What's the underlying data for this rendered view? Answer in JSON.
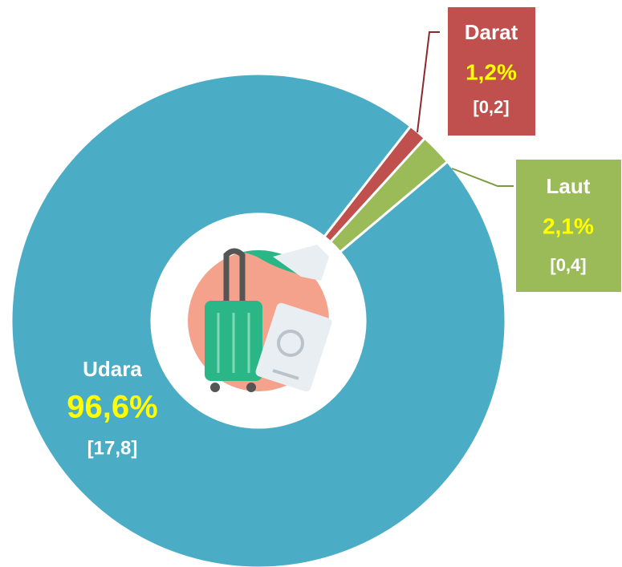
{
  "chart_data": {
    "type": "donut",
    "categories": [
      "Darat",
      "Laut",
      "Udara"
    ],
    "values": [
      1.2,
      2.1,
      96.6
    ],
    "value_labels": [
      "1,2%",
      "2,1%",
      "96,6%"
    ],
    "counts": [
      0.2,
      0.4,
      17.8
    ],
    "count_labels": [
      "[0,2]",
      "[0,4]",
      "[17,8]"
    ],
    "colors": [
      "#c0504d",
      "#9bbb59",
      "#4bacc6"
    ]
  }
}
